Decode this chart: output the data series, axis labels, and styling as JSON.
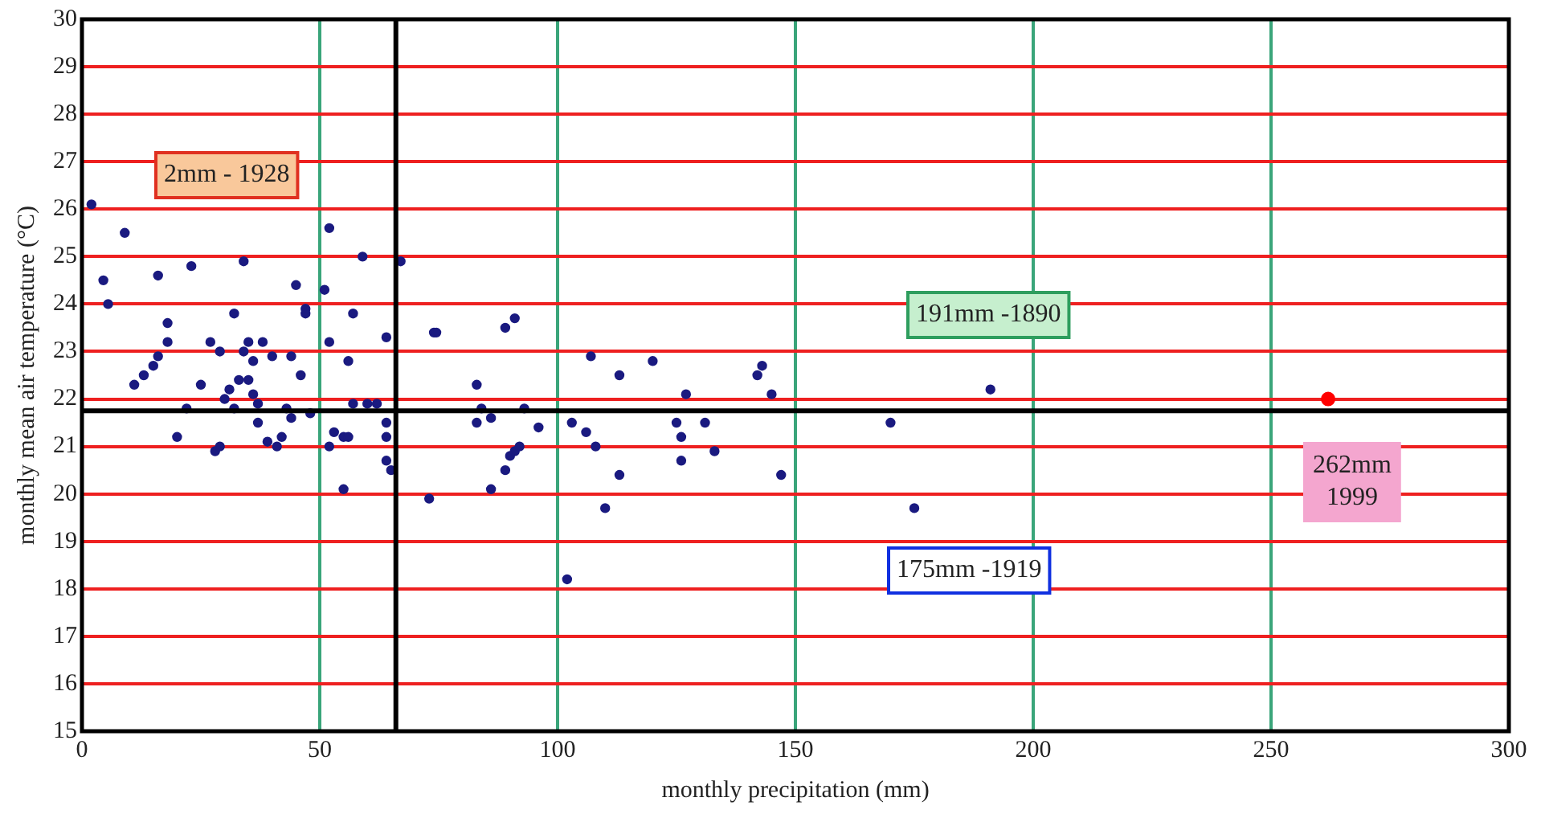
{
  "chart_data": {
    "type": "scatter",
    "xlabel": "monthly precipitation (mm)",
    "ylabel": "monthly mean air temperature (°C)",
    "xlim": [
      0,
      300
    ],
    "xticks": [
      0,
      50,
      100,
      150,
      200,
      250,
      300
    ],
    "ylim": [
      15,
      30
    ],
    "yticks": [
      15,
      16,
      17,
      18,
      19,
      20,
      21,
      22,
      23,
      24,
      25,
      26,
      27,
      28,
      29,
      30
    ],
    "grid": true,
    "legend": false,
    "marker": "circle",
    "series": [
      {
        "color": "#1a1a80",
        "x": [
          2,
          4.5,
          5.5,
          9,
          11,
          13,
          15,
          16,
          16,
          18,
          18,
          20,
          22,
          23,
          25,
          27,
          28,
          29,
          29,
          30,
          31,
          32,
          32,
          33,
          34,
          34,
          35,
          35,
          36,
          36,
          37,
          37,
          38,
          39,
          40,
          41,
          42,
          43,
          44,
          44,
          45,
          46,
          47,
          47,
          48,
          51,
          52,
          52,
          52,
          53,
          55,
          55,
          56,
          56,
          57,
          57,
          59,
          60,
          62,
          64,
          64,
          64,
          64,
          65,
          67,
          73,
          74,
          74.5,
          83,
          83,
          84,
          86,
          86,
          89,
          89,
          90,
          91,
          91,
          92,
          93,
          96,
          102,
          103,
          106,
          107,
          108,
          110,
          113,
          113,
          120,
          125,
          126,
          126,
          127,
          131,
          133,
          142,
          143,
          145,
          147,
          170,
          175,
          191
        ],
        "values": [
          26.1,
          24.5,
          24,
          25.5,
          22.3,
          22.5,
          22.7,
          22.9,
          24.6,
          23.2,
          23.6,
          21.2,
          21.8,
          24.8,
          22.3,
          23.2,
          20.9,
          23,
          21,
          22,
          22.2,
          21.8,
          23.8,
          22.4,
          24.9,
          23,
          23.2,
          22.4,
          22.8,
          22.1,
          21.9,
          21.5,
          23.2,
          21.1,
          22.9,
          21,
          21.2,
          21.8,
          22.9,
          21.6,
          24.4,
          22.5,
          23.9,
          23.8,
          21.7,
          24.3,
          25.6,
          21,
          23.2,
          21.3,
          20.1,
          21.2,
          21.2,
          22.8,
          23.8,
          21.9,
          25,
          21.9,
          21.9,
          23.3,
          21.5,
          21.2,
          20.7,
          20.5,
          24.9,
          19.9,
          23.4,
          23.4,
          22.3,
          21.5,
          21.8,
          20.1,
          21.6,
          23.5,
          20.5,
          20.8,
          23.7,
          20.9,
          21,
          21.8,
          21.4,
          18.2,
          21.5,
          21.3,
          22.9,
          21,
          19.7,
          22.5,
          20.4,
          22.8,
          21.5,
          21.2,
          20.7,
          22.1,
          21.5,
          20.9,
          22.5,
          22.7,
          22.1,
          20.4,
          21.5,
          19.7,
          22.2
        ]
      },
      {
        "color": "#ff0000",
        "x": [
          262
        ],
        "values": [
          22.0
        ]
      }
    ],
    "ref_lines": [
      {
        "axis": "x",
        "value": 66,
        "color": "#000000"
      },
      {
        "axis": "y",
        "value": 21.75,
        "color": "#000000"
      }
    ],
    "annotations": [
      "2mm - 1928",
      "191mm -1890",
      "262mm\n1999",
      "175mm -1919"
    ]
  }
}
